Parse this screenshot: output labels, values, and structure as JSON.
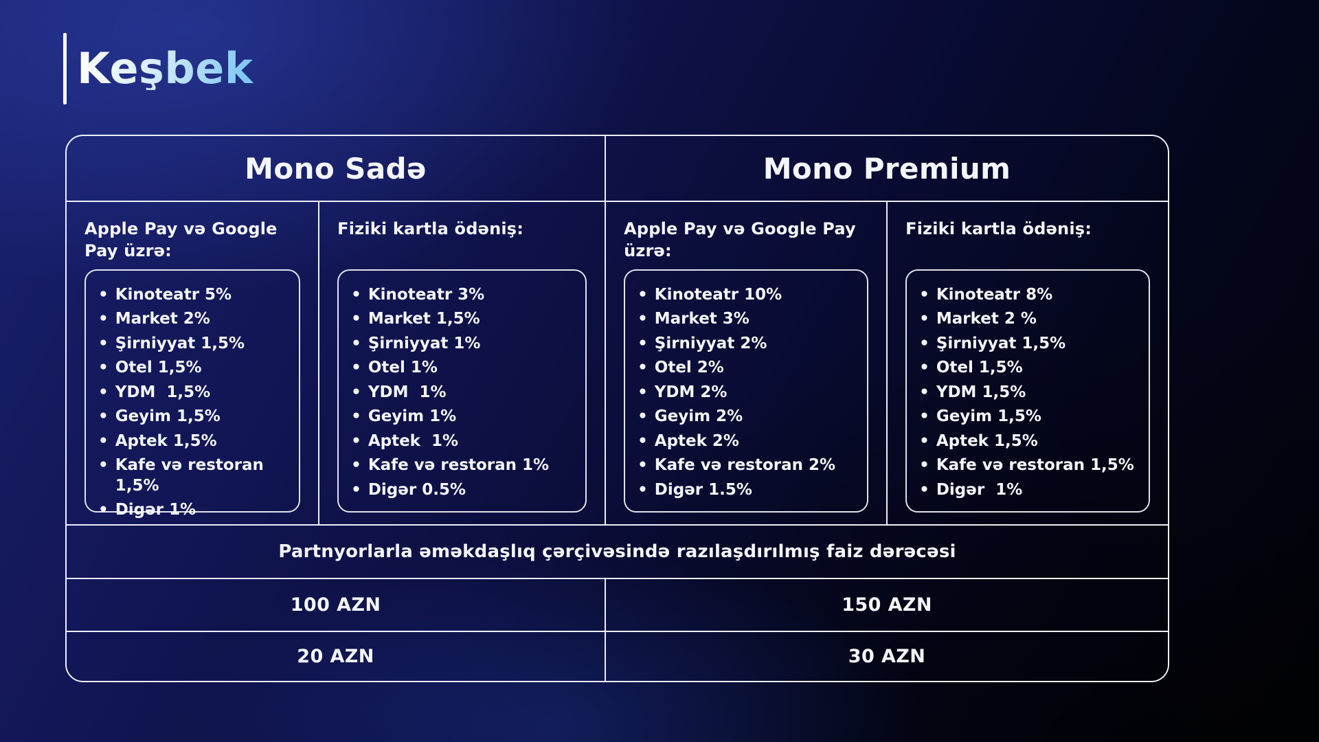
{
  "page": {
    "title": "Keşbek"
  },
  "glyphs": {
    "bullet": "•"
  },
  "colors": {
    "background_top_left": "#1a216f",
    "background_bottom_right": "#020309",
    "border": "#edf0f8",
    "text": "#f4f6fb",
    "title_gradient_start": "#ffffff",
    "title_gradient_end": "#7ec6f4"
  },
  "table": {
    "partner_note": "Partnyorlarla əməkdaşlıq çərçivəsində razılaşdırılmış faiz dərəcəsi",
    "plans": [
      {
        "name": "Mono Sadə",
        "columns": [
          {
            "heading": "Apple Pay və Google Pay üzrə:",
            "items": [
              "Kinoteatr 5%",
              "Market 2%",
              "Şirniyyat 1,5%",
              "Otel 1,5%",
              "YDM  1,5%",
              "Geyim 1,5%",
              "Aptek 1,5%",
              "Kafe və restoran 1,5%",
              "Digər 1%"
            ]
          },
          {
            "heading": "Fiziki kartla ödəniş:",
            "items": [
              "Kinoteatr 3%",
              "Market 1,5%",
              "Şirniyyat 1%",
              "Otel 1%",
              "YDM  1%",
              "Geyim 1%",
              "Aptek  1%",
              "Kafe və restoran 1%",
              "Digər 0.5%"
            ]
          }
        ],
        "partner_rate_value": "100 AZN",
        "second_value": "20 AZN"
      },
      {
        "name": "Mono Premium",
        "columns": [
          {
            "heading": "Apple Pay və Google Pay üzrə:",
            "items": [
              "Kinoteatr 10%",
              "Market 3%",
              "Şirniyyat 2%",
              "Otel 2%",
              "YDM 2%",
              "Geyim 2%",
              "Aptek 2%",
              "Kafe və restoran 2%",
              "Digər 1.5%"
            ]
          },
          {
            "heading": "Fiziki kartla ödəniş:",
            "items": [
              "Kinoteatr 8%",
              "Market 2 %",
              "Şirniyyat 1,5%",
              "Otel 1,5%",
              "YDM 1,5%",
              "Geyim 1,5%",
              "Aptek 1,5%",
              "Kafe və restoran 1,5%",
              "Digər  1%"
            ]
          }
        ],
        "partner_rate_value": "150 AZN",
        "second_value": "30 AZN"
      }
    ]
  }
}
